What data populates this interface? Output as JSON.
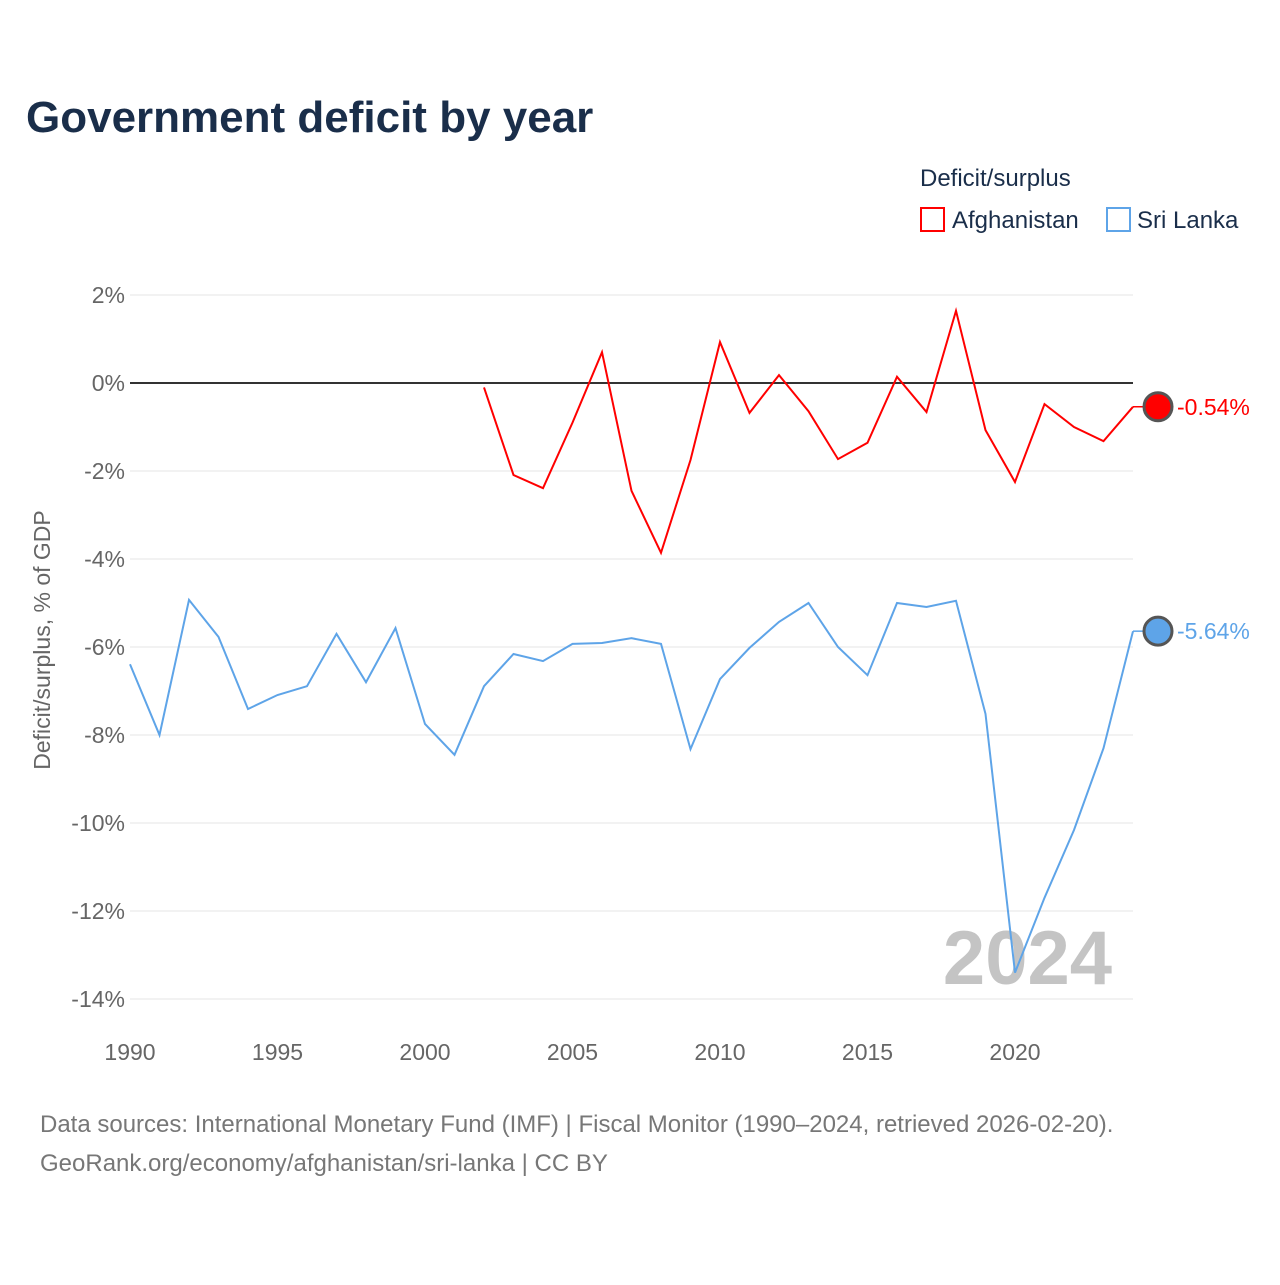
{
  "chart_data": {
    "type": "line",
    "title": "Government deficit by year",
    "ylabel": "Deficit/surplus, % of GDP",
    "xlabel": "",
    "xlim": [
      1990,
      2024
    ],
    "ylim": [
      -14,
      2
    ],
    "x_ticks": [
      1990,
      1995,
      2000,
      2005,
      2010,
      2015,
      2020
    ],
    "x_tick_labels": [
      "1990",
      "1995",
      "2000",
      "2005",
      "2010",
      "2015",
      "2020"
    ],
    "y_ticks": [
      2,
      0,
      -2,
      -4,
      -6,
      -8,
      -10,
      -12,
      -14
    ],
    "y_tick_labels": [
      "2%",
      "0%",
      "-2%",
      "-4%",
      "-6%",
      "-8%",
      "-10%",
      "-12%",
      "-14%"
    ],
    "grid": true,
    "legend": {
      "title": "Deficit/surplus",
      "placement": "top-right"
    },
    "watermark_year": "2024",
    "series": [
      {
        "name": "Afghanistan",
        "color": "#ff0000",
        "end_label": "-0.54%",
        "x": [
          2002,
          2003,
          2004,
          2005,
          2006,
          2007,
          2008,
          2009,
          2010,
          2011,
          2012,
          2013,
          2014,
          2015,
          2016,
          2017,
          2018,
          2019,
          2020,
          2021,
          2022,
          2023,
          2024
        ],
        "values": [
          -0.1,
          -2.09,
          -2.39,
          -0.9,
          0.7,
          -2.45,
          -3.86,
          -1.75,
          0.93,
          -0.68,
          0.18,
          -0.64,
          -1.73,
          -1.36,
          0.14,
          -0.66,
          1.64,
          -1.07,
          -2.25,
          -0.48,
          -1.0,
          -1.32,
          -0.54
        ]
      },
      {
        "name": "Sri Lanka",
        "color": "#5ea4e8",
        "end_label": "-5.64%",
        "x": [
          1990,
          1991,
          1992,
          1993,
          1994,
          1995,
          1996,
          1997,
          1998,
          1999,
          2000,
          2001,
          2002,
          2003,
          2004,
          2005,
          2006,
          2007,
          2008,
          2009,
          2010,
          2011,
          2012,
          2013,
          2014,
          2015,
          2016,
          2017,
          2018,
          2019,
          2020,
          2021,
          2022,
          2023,
          2024
        ],
        "values": [
          -6.39,
          -8.0,
          -4.93,
          -5.77,
          -7.41,
          -7.09,
          -6.89,
          -5.7,
          -6.8,
          -5.57,
          -7.75,
          -8.45,
          -6.89,
          -6.16,
          -6.32,
          -5.93,
          -5.91,
          -5.8,
          -5.93,
          -8.32,
          -6.73,
          -6.02,
          -5.43,
          -5.0,
          -6.0,
          -6.64,
          -5.0,
          -5.09,
          -4.95,
          -7.52,
          -13.4,
          -11.7,
          -10.16,
          -8.3,
          -5.64
        ]
      }
    ]
  },
  "footer": {
    "source": "Data sources: International Monetary Fund (IMF) | Fiscal Monitor (1990–2024, retrieved 2026-02-20).",
    "credit": "GeoRank.org/economy/afghanistan/sri-lanka | CC BY"
  }
}
